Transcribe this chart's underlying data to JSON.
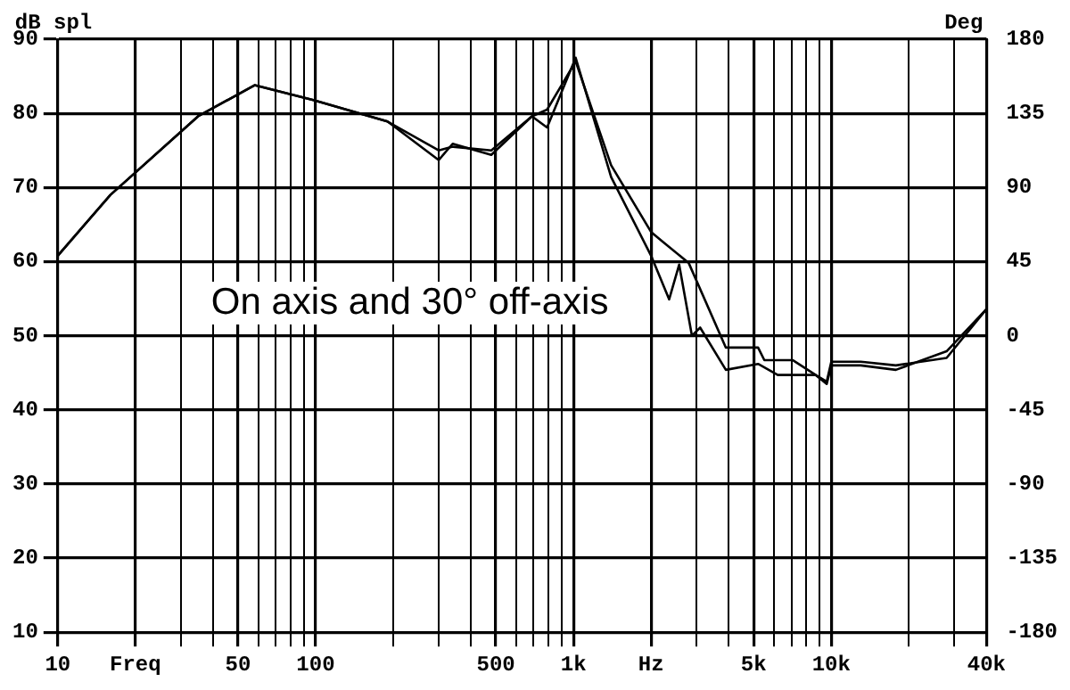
{
  "chart_data": {
    "type": "line",
    "ylabel": "dB spl",
    "y2label": "Deg",
    "annotations": [
      "On axis and 30° off-axis"
    ],
    "log": "x",
    "grid": true,
    "marker": "none",
    "line_style": "solid",
    "legend": false,
    "xlim": [
      10,
      40000
    ],
    "xticks": [
      10,
      {
        "value": 20,
        "label": "Freq"
      },
      {
        "value": 30,
        "label": null
      },
      {
        "value": 40,
        "label": null
      },
      50,
      {
        "value": 60,
        "label": null
      },
      {
        "value": 70,
        "label": null
      },
      {
        "value": 80,
        "label": null
      },
      {
        "value": 90,
        "label": null
      },
      100,
      {
        "value": 200,
        "label": null
      },
      {
        "value": 300,
        "label": null
      },
      {
        "value": 400,
        "label": null
      },
      500,
      {
        "value": 600,
        "label": null
      },
      {
        "value": 700,
        "label": null
      },
      {
        "value": 800,
        "label": null
      },
      {
        "value": 900,
        "label": null
      },
      {
        "value": 1000,
        "label": "1k"
      },
      {
        "value": 2000,
        "label": "Hz"
      },
      {
        "value": 3000,
        "label": null
      },
      {
        "value": 4000,
        "label": null
      },
      {
        "value": 5000,
        "label": "5k"
      },
      {
        "value": 6000,
        "label": null
      },
      {
        "value": 7000,
        "label": null
      },
      {
        "value": 8000,
        "label": null
      },
      {
        "value": 9000,
        "label": null
      },
      {
        "value": 10000,
        "label": "10k"
      },
      {
        "value": 20000,
        "label": null
      },
      {
        "value": 30000,
        "label": null
      },
      {
        "value": 40000,
        "label": "40k"
      }
    ],
    "ylim": [
      10,
      90
    ],
    "yticks": [
      10,
      20,
      30,
      40,
      50,
      60,
      70,
      80,
      90
    ],
    "y2lim": [
      -180,
      180
    ],
    "y2ticks": [
      -180,
      -135,
      -90,
      -45,
      0,
      45,
      90,
      135,
      180
    ],
    "series": [
      {
        "color": "#000000",
        "x": [
          10,
          16,
          35,
          58,
          98,
          190,
          300,
          340,
          480,
          690,
          790,
          1020,
          1400,
          2000,
          2350,
          2570,
          2880,
          3100,
          3900,
          5200,
          6200,
          8700,
          9600,
          10000,
          13000,
          17800,
          28000,
          40000
        ],
        "values": [
          60.8,
          69,
          79.6,
          83.8,
          81.8,
          78.9,
          73.7,
          75.9,
          74.4,
          79.6,
          78.1,
          87.5,
          71.4,
          60.8,
          54.9,
          59.6,
          50,
          51.1,
          45.4,
          46.2,
          44.7,
          44.7,
          43.5,
          46,
          46,
          45.4,
          47.9,
          53.6
        ]
      },
      {
        "color": "#000000",
        "x": [
          10,
          16,
          35,
          58,
          98,
          190,
          300,
          340,
          480,
          690,
          790,
          1020,
          1400,
          2000,
          2200,
          2800,
          3900,
          5200,
          5500,
          7100,
          8700,
          9600,
          10000,
          13000,
          17800,
          28000,
          40000
        ],
        "values": [
          60.8,
          69,
          79.6,
          83.8,
          81.8,
          78.9,
          75,
          75.5,
          75,
          79.6,
          80.5,
          87,
          73,
          64,
          62.8,
          59.8,
          48.4,
          48.4,
          46.7,
          46.7,
          44.7,
          43.8,
          46.5,
          46.5,
          46,
          47,
          53.6
        ]
      }
    ]
  }
}
